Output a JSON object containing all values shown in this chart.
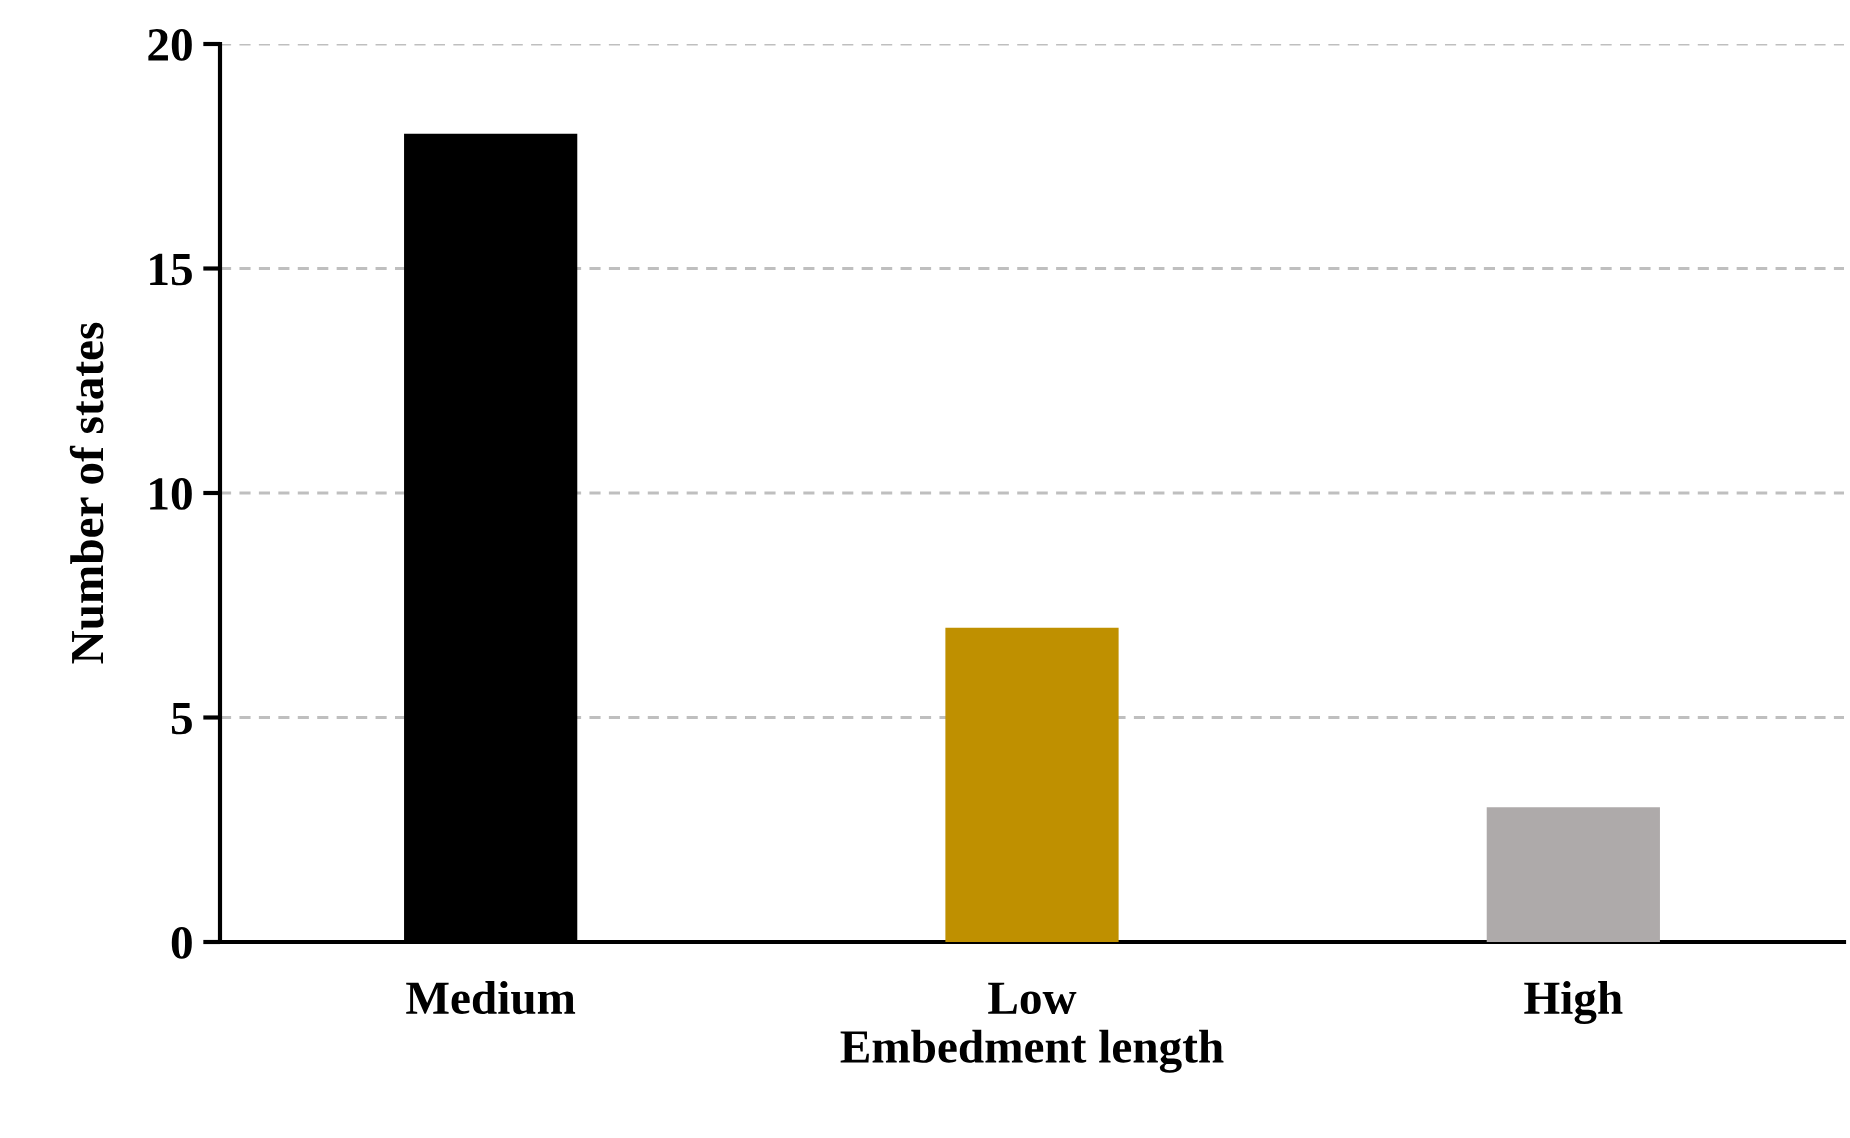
{
  "chart_data": {
    "type": "bar",
    "xlabel": "Embedment length",
    "ylabel": "Number of states",
    "categories": [
      "Medium",
      "Low",
      "High"
    ],
    "values": [
      18,
      7,
      3
    ],
    "colors": [
      "#000000",
      "#bf9000",
      "#aeaaaa"
    ],
    "ylim": [
      0,
      20
    ],
    "yticks": [
      0,
      5,
      10,
      15,
      20
    ],
    "grid": "y"
  }
}
